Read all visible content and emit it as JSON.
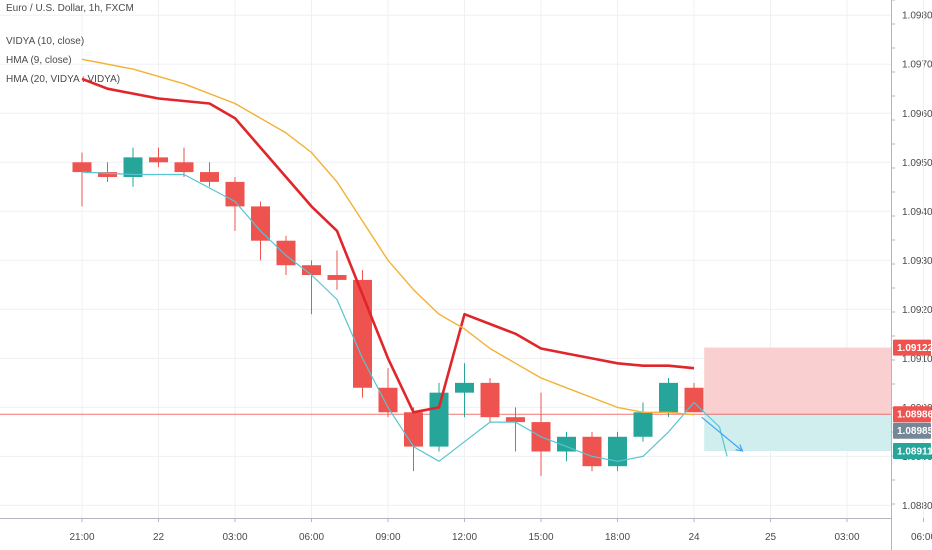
{
  "legend": {
    "symbol": "Euro / U.S. Dollar, 1h, FXCM",
    "ind1": "VIDYA (10, close)",
    "ind2": "HMA (9, close)",
    "ind3": "HMA (20, VIDYA : VIDYA)"
  },
  "colors": {
    "up": "#26a69a",
    "down": "#ef5350",
    "hma_short": "#56c5d0",
    "hma_long": "#e0252b",
    "vidya": "#f2b134",
    "stop_zone": "#f9cfcf",
    "target_zone": "#cfeeed",
    "grid": "#eef0f3",
    "axis_text": "#4a4a4a"
  },
  "chart_data": {
    "type": "candlestick",
    "instrument": "Euro / U.S. Dollar",
    "timeframe": "1h",
    "source": "FXCM",
    "y_range": [
      1.0875,
      1.0982
    ],
    "x_ticks": [
      {
        "bar": -1,
        "label": "21:00"
      },
      {
        "bar": 2,
        "label": "22"
      },
      {
        "bar": 5,
        "label": "03:00"
      },
      {
        "bar": 8,
        "label": "06:00"
      },
      {
        "bar": 11,
        "label": "09:00"
      },
      {
        "bar": 14,
        "label": "12:00"
      },
      {
        "bar": 17,
        "label": "15:00"
      },
      {
        "bar": 20,
        "label": "18:00"
      },
      {
        "bar": 23,
        "label": "24"
      },
      {
        "bar": 26,
        "label": "25"
      },
      {
        "bar": 29,
        "label": "03:00"
      },
      {
        "bar": 32,
        "label": "06:00"
      }
    ],
    "y_ticks": [
      "1.08800",
      "1.08900",
      "1.09000",
      "1.09100",
      "1.09200",
      "1.09300",
      "1.09400",
      "1.09500",
      "1.09600",
      "1.09700",
      "1.09800"
    ],
    "candles": [
      {
        "bar": -1,
        "o": 1.095,
        "h": 1.0952,
        "l": 1.0941,
        "c": 1.0948
      },
      {
        "bar": 0,
        "o": 1.0948,
        "h": 1.095,
        "l": 1.0946,
        "c": 1.0947
      },
      {
        "bar": 1,
        "o": 1.0947,
        "h": 1.0953,
        "l": 1.0945,
        "c": 1.0951
      },
      {
        "bar": 2,
        "o": 1.0951,
        "h": 1.0953,
        "l": 1.0949,
        "c": 1.095
      },
      {
        "bar": 3,
        "o": 1.095,
        "h": 1.0953,
        "l": 1.0947,
        "c": 1.0948
      },
      {
        "bar": 4,
        "o": 1.0948,
        "h": 1.095,
        "l": 1.0945,
        "c": 1.0946
      },
      {
        "bar": 5,
        "o": 1.0946,
        "h": 1.0947,
        "l": 1.0936,
        "c": 1.0941
      },
      {
        "bar": 6,
        "o": 1.0941,
        "h": 1.0942,
        "l": 1.093,
        "c": 1.0934
      },
      {
        "bar": 7,
        "o": 1.0934,
        "h": 1.0935,
        "l": 1.0927,
        "c": 1.0929
      },
      {
        "bar": 8,
        "o": 1.0929,
        "h": 1.093,
        "l": 1.0919,
        "c": 1.0927
      },
      {
        "bar": 9,
        "o": 1.0927,
        "h": 1.0932,
        "l": 1.0924,
        "c": 1.0926
      },
      {
        "bar": 10,
        "o": 1.0926,
        "h": 1.0928,
        "l": 1.0902,
        "c": 1.0904
      },
      {
        "bar": 11,
        "o": 1.0904,
        "h": 1.0908,
        "l": 1.0898,
        "c": 1.0899
      },
      {
        "bar": 12,
        "o": 1.0899,
        "h": 1.09,
        "l": 1.0887,
        "c": 1.0892
      },
      {
        "bar": 13,
        "o": 1.0892,
        "h": 1.0905,
        "l": 1.0891,
        "c": 1.0903
      },
      {
        "bar": 14,
        "o": 1.0903,
        "h": 1.0909,
        "l": 1.0898,
        "c": 1.0905
      },
      {
        "bar": 15,
        "o": 1.0905,
        "h": 1.0906,
        "l": 1.0897,
        "c": 1.0898
      },
      {
        "bar": 16,
        "o": 1.0898,
        "h": 1.09,
        "l": 1.0891,
        "c": 1.0897
      },
      {
        "bar": 17,
        "o": 1.0897,
        "h": 1.0903,
        "l": 1.0886,
        "c": 1.0891
      },
      {
        "bar": 18,
        "o": 1.0891,
        "h": 1.0895,
        "l": 1.0889,
        "c": 1.0894
      },
      {
        "bar": 19,
        "o": 1.0894,
        "h": 1.0895,
        "l": 1.0887,
        "c": 1.0888
      },
      {
        "bar": 20,
        "o": 1.0888,
        "h": 1.0895,
        "l": 1.0887,
        "c": 1.0894
      },
      {
        "bar": 21,
        "o": 1.0894,
        "h": 1.0901,
        "l": 1.0893,
        "c": 1.0899
      },
      {
        "bar": 22,
        "o": 1.0899,
        "h": 1.0906,
        "l": 1.0898,
        "c": 1.0905
      },
      {
        "bar": 23,
        "o": 1.0904,
        "h": 1.0905,
        "l": 1.0899,
        "c": 1.0899
      }
    ],
    "series": [
      {
        "name": "HMA (9, close)",
        "points": [
          [
            -1,
            1.0948
          ],
          [
            1,
            1.09475
          ],
          [
            3,
            1.09475
          ],
          [
            5,
            1.0942
          ],
          [
            6,
            1.0936
          ],
          [
            7,
            1.0931
          ],
          [
            8,
            1.0927
          ],
          [
            9,
            1.0922
          ],
          [
            10,
            1.091
          ],
          [
            11,
            1.09
          ],
          [
            12,
            1.0892
          ],
          [
            13,
            1.0889
          ],
          [
            14,
            1.0893
          ],
          [
            15,
            1.0897
          ],
          [
            16,
            1.0897
          ],
          [
            17,
            1.0894
          ],
          [
            18,
            1.0892
          ],
          [
            19,
            1.089
          ],
          [
            20,
            1.0889
          ],
          [
            21,
            1.089
          ],
          [
            22,
            1.0895
          ],
          [
            23,
            1.0901
          ],
          [
            24,
            1.0896
          ],
          [
            24.3,
            1.089
          ]
        ]
      },
      {
        "name": "HMA (20, VIDYA : VIDYA)",
        "points": [
          [
            -1,
            1.0967
          ],
          [
            0,
            1.0965
          ],
          [
            2,
            1.0963
          ],
          [
            4,
            1.0962
          ],
          [
            5,
            1.0959
          ],
          [
            6,
            1.0953
          ],
          [
            7,
            1.0947
          ],
          [
            8,
            1.0941
          ],
          [
            9,
            1.0936
          ],
          [
            10,
            1.0923
          ],
          [
            11,
            1.091
          ],
          [
            12,
            1.0899
          ],
          [
            13,
            1.09
          ],
          [
            14,
            1.0919
          ],
          [
            15,
            1.0917
          ],
          [
            16,
            1.0915
          ],
          [
            17,
            1.0912
          ],
          [
            18,
            1.0911
          ],
          [
            19,
            1.091
          ],
          [
            20,
            1.0909
          ],
          [
            21,
            1.09085
          ],
          [
            22,
            1.09085
          ],
          [
            23,
            1.0908
          ]
        ]
      },
      {
        "name": "VIDYA (10, close)",
        "points": [
          [
            -1,
            1.0971
          ],
          [
            1,
            1.0969
          ],
          [
            3,
            1.0966
          ],
          [
            5,
            1.0962
          ],
          [
            7,
            1.0956
          ],
          [
            8,
            1.0952
          ],
          [
            9,
            1.0946
          ],
          [
            10,
            1.0938
          ],
          [
            11,
            1.093
          ],
          [
            12,
            1.0924
          ],
          [
            13,
            1.0919
          ],
          [
            14,
            1.0916
          ],
          [
            15,
            1.0912
          ],
          [
            16,
            1.0909
          ],
          [
            17,
            1.0906
          ],
          [
            18,
            1.0904
          ],
          [
            19,
            1.0902
          ],
          [
            20,
            1.09
          ],
          [
            21,
            1.0899
          ],
          [
            22,
            1.0899
          ],
          [
            23,
            1.08985
          ]
        ]
      }
    ],
    "projection": {
      "from": [
        23.3,
        1.0898
      ],
      "to": [
        24.9,
        1.08911
      ]
    },
    "position": {
      "entry": 1.08986,
      "stop": 1.09122,
      "target": 1.08911,
      "start_bar": 23.4,
      "end_bar": 34.5
    },
    "price_tags": [
      {
        "label": "1.09122",
        "price": 1.09122,
        "style": "stop"
      },
      {
        "label": "1.08986",
        "price": 1.08986,
        "style": "entry"
      },
      {
        "label": "1.08985",
        "price": 1.08985,
        "style": "current"
      },
      {
        "label": "1.08911",
        "price": 1.08911,
        "style": "target"
      }
    ]
  }
}
